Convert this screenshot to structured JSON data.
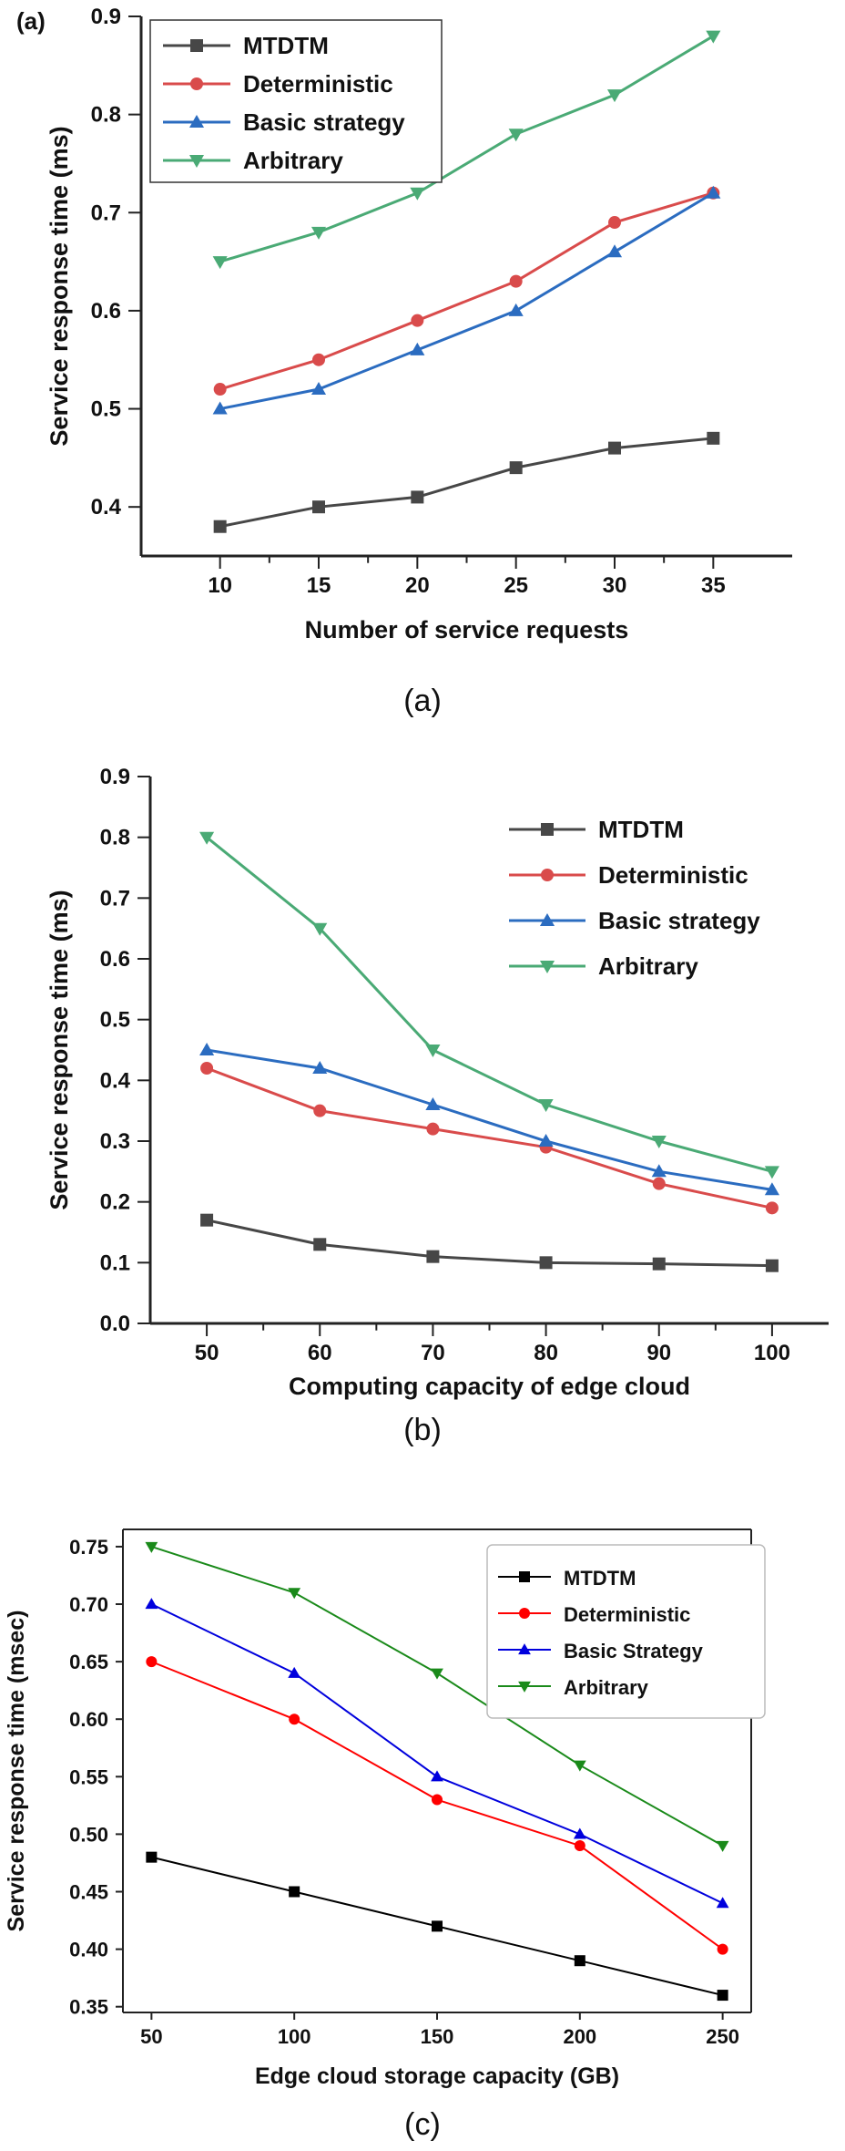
{
  "chart_data": [
    {
      "type": "line",
      "panel_tag": "(a)",
      "caption": "(a)",
      "xlabel": "Number of service requests",
      "ylabel": "Service response time (ms)",
      "x": [
        10,
        15,
        20,
        25,
        30,
        35
      ],
      "xlim": [
        6,
        39
      ],
      "ylim": [
        0.35,
        0.9
      ],
      "xticks": [
        "10",
        "15",
        "20",
        "25",
        "30",
        "35"
      ],
      "yticks": [
        "0.4",
        "0.5",
        "0.6",
        "0.7",
        "0.8",
        "0.9"
      ],
      "legend_position": "top-left",
      "series": [
        {
          "name": "MTDTM",
          "color": "#474747",
          "marker": "square",
          "values": [
            0.38,
            0.4,
            0.41,
            0.44,
            0.46,
            0.47
          ]
        },
        {
          "name": "Deterministic",
          "color": "#d94b4b",
          "marker": "circle",
          "values": [
            0.52,
            0.55,
            0.59,
            0.63,
            0.69,
            0.72
          ]
        },
        {
          "name": "Basic strategy",
          "color": "#2b6cc0",
          "marker": "triangle-up",
          "values": [
            0.5,
            0.52,
            0.56,
            0.6,
            0.66,
            0.72
          ]
        },
        {
          "name": "Arbitrary",
          "color": "#4aaa75",
          "marker": "triangle-down",
          "values": [
            0.65,
            0.68,
            0.72,
            0.78,
            0.82,
            0.88
          ]
        }
      ]
    },
    {
      "type": "line",
      "caption": "(b)",
      "xlabel": "Computing capacity of edge cloud",
      "ylabel": "Service response time (ms)",
      "x": [
        50,
        60,
        70,
        80,
        90,
        100
      ],
      "xlim": [
        45,
        105
      ],
      "ylim": [
        0.0,
        0.9
      ],
      "xticks": [
        "50",
        "60",
        "70",
        "80",
        "90",
        "100"
      ],
      "yticks": [
        "0.0",
        "0.1",
        "0.2",
        "0.3",
        "0.4",
        "0.5",
        "0.6",
        "0.7",
        "0.8",
        "0.9"
      ],
      "legend_position": "top-right",
      "series": [
        {
          "name": "MTDTM",
          "color": "#474747",
          "marker": "square",
          "values": [
            0.17,
            0.13,
            0.11,
            0.1,
            0.098,
            0.095
          ]
        },
        {
          "name": "Deterministic",
          "color": "#d94b4b",
          "marker": "circle",
          "values": [
            0.42,
            0.35,
            0.32,
            0.29,
            0.23,
            0.19
          ]
        },
        {
          "name": "Basic strategy",
          "color": "#2b6cc0",
          "marker": "triangle-up",
          "values": [
            0.45,
            0.42,
            0.36,
            0.3,
            0.25,
            0.22
          ]
        },
        {
          "name": "Arbitrary",
          "color": "#4aaa75",
          "marker": "triangle-down",
          "values": [
            0.8,
            0.65,
            0.45,
            0.36,
            0.3,
            0.25
          ]
        }
      ]
    },
    {
      "type": "line",
      "caption": "(c)",
      "xlabel": "Edge cloud storage capacity (GB)",
      "ylabel": "Service response time (msec)",
      "x": [
        50,
        100,
        150,
        200,
        250
      ],
      "xlim": [
        40,
        260
      ],
      "ylim": [
        0.345,
        0.765
      ],
      "xticks": [
        "50",
        "100",
        "150",
        "200",
        "250"
      ],
      "yticks": [
        "0.35",
        "0.40",
        "0.45",
        "0.50",
        "0.55",
        "0.60",
        "0.65",
        "0.70",
        "0.75"
      ],
      "legend_position": "top-right",
      "series": [
        {
          "name": "MTDTM",
          "color": "#000000",
          "marker": "square",
          "values": [
            0.48,
            0.45,
            0.42,
            0.39,
            0.36
          ]
        },
        {
          "name": "Deterministic",
          "color": "#ff0000",
          "marker": "circle",
          "values": [
            0.65,
            0.6,
            0.53,
            0.49,
            0.4
          ]
        },
        {
          "name": "Basic Strategy",
          "color": "#0000dd",
          "marker": "triangle-up",
          "values": [
            0.7,
            0.64,
            0.55,
            0.5,
            0.44
          ]
        },
        {
          "name": "Arbitrary",
          "color": "#1a8a1a",
          "marker": "triangle-down",
          "values": [
            0.75,
            0.71,
            0.64,
            0.56,
            0.49
          ]
        }
      ]
    }
  ]
}
